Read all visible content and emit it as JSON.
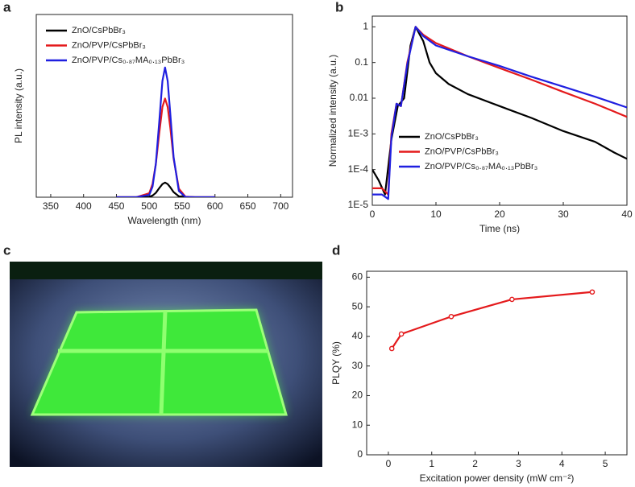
{
  "photo": {
    "label": "c"
  },
  "chart_data": [
    {
      "label": "a",
      "type": "line",
      "xlabel": "Wavelength (nm)",
      "ylabel": "PL intensity (a.u.)",
      "xlim": [
        328,
        718
      ],
      "xticks": [
        350,
        400,
        450,
        500,
        550,
        600,
        650,
        700
      ],
      "ylim": [
        0,
        1
      ],
      "legend": "upper left",
      "series": [
        {
          "name": "ZnO/CsPbBr₃",
          "color": "#000000",
          "x": [
            450,
            480,
            500,
            505,
            510,
            515,
            520,
            524,
            528,
            532,
            537,
            545,
            555,
            570,
            600
          ],
          "values": [
            0,
            0,
            0.002,
            0.009,
            0.024,
            0.049,
            0.072,
            0.08,
            0.072,
            0.054,
            0.028,
            0.005,
            0,
            0,
            0
          ]
        },
        {
          "name": "ZnO/PVP/CsPbBr₃",
          "color": "#e41a1c",
          "x": [
            450,
            480,
            500,
            505,
            510,
            515,
            520,
            524,
            528,
            532,
            537,
            545,
            555,
            570,
            600
          ],
          "values": [
            0,
            0,
            0.022,
            0.073,
            0.182,
            0.345,
            0.494,
            0.54,
            0.494,
            0.38,
            0.212,
            0.047,
            0.003,
            0,
            0
          ]
        },
        {
          "name": "ZnO/PVP/Cs₀.₈₇MA₀.₁₃PbBr₃",
          "color": "#1f1fe0",
          "x": [
            450,
            480,
            500,
            505,
            510,
            515,
            520,
            524,
            528,
            532,
            537,
            545,
            555,
            570,
            600
          ],
          "values": [
            0,
            0,
            0.013,
            0.058,
            0.183,
            0.405,
            0.636,
            0.71,
            0.636,
            0.456,
            0.22,
            0.034,
            0.002,
            0,
            0
          ]
        }
      ]
    },
    {
      "label": "b",
      "type": "line",
      "xlabel": "Time (ns)",
      "ylabel": "Normalized intensity (a.u.)",
      "xlim": [
        0,
        40
      ],
      "xticks": [
        0,
        10,
        20,
        30,
        40
      ],
      "ylim": [
        1e-05,
        2
      ],
      "log_y": true,
      "yticks": [
        {
          "value": 1e-05,
          "label": "1E-5"
        },
        {
          "value": 0.0001,
          "label": "1E-4"
        },
        {
          "value": 0.001,
          "label": "1E-3"
        },
        0.01,
        0.1,
        1
      ],
      "legend": "lower left",
      "series": [
        {
          "name": "ZnO/CsPbBr₃",
          "color": "#000000",
          "x": [
            0,
            1,
            2,
            3,
            4,
            5,
            6,
            6.8,
            8,
            9,
            10,
            12,
            15,
            20,
            25,
            30,
            35,
            38,
            40
          ],
          "values": [
            0.0001,
            5e-05,
            2e-05,
            0.0007,
            0.006,
            0.01,
            0.3,
            1,
            0.4,
            0.1,
            0.05,
            0.025,
            0.013,
            0.006,
            0.0028,
            0.0012,
            0.0006,
            0.0003,
            0.0002
          ]
        },
        {
          "name": "ZnO/PVP/CsPbBr₃",
          "color": "#e41a1c",
          "x": [
            0,
            1.5,
            2.5,
            3,
            3.8,
            4.5,
            5.5,
            6.8,
            8,
            10,
            15,
            20,
            25,
            30,
            35,
            40
          ],
          "values": [
            3e-05,
            3e-05,
            2e-05,
            0.001,
            0.007,
            0.006,
            0.1,
            1,
            0.6,
            0.35,
            0.15,
            0.07,
            0.033,
            0.015,
            0.007,
            0.003
          ]
        },
        {
          "name": "ZnO/PVP/Cs₀.₈₇MA₀.₁₃PbBr₃",
          "color": "#1f1fe0",
          "x": [
            0,
            1.5,
            2.5,
            3,
            3.8,
            4.5,
            5.5,
            6.8,
            8,
            10,
            15,
            20,
            25,
            30,
            35,
            40
          ],
          "values": [
            2e-05,
            2e-05,
            1.5e-05,
            0.0008,
            0.007,
            0.006,
            0.09,
            1,
            0.55,
            0.3,
            0.15,
            0.08,
            0.04,
            0.021,
            0.011,
            0.0055
          ]
        }
      ]
    },
    {
      "label": "d",
      "type": "line",
      "xlabel": "Excitation power density (mW cm⁻²)",
      "ylabel": "PLQY (%)",
      "xlim": [
        -0.5,
        5.5
      ],
      "xticks": [
        0,
        1,
        2,
        3,
        4,
        5
      ],
      "ylim": [
        0,
        62
      ],
      "yticks": [
        0,
        10,
        20,
        30,
        40,
        50,
        60
      ],
      "markers": true,
      "series": [
        {
          "color": "#e41a1c",
          "x": [
            0.08,
            0.3,
            1.45,
            2.85,
            4.7
          ],
          "values": [
            35.9,
            40.8,
            46.7,
            52.5,
            55
          ]
        }
      ]
    }
  ]
}
